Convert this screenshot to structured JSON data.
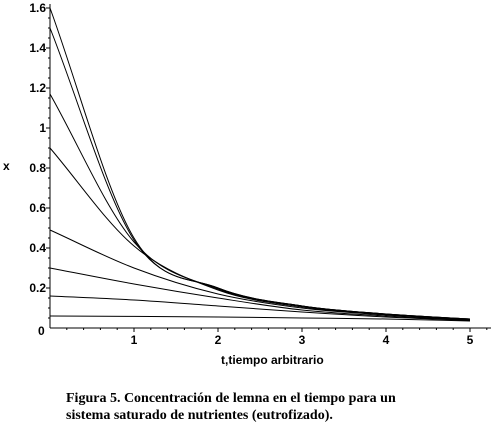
{
  "chart_data": {
    "type": "line",
    "xlabel": "t,tiempo arbitrario",
    "ylabel": "x",
    "xlim": [
      0,
      5.25
    ],
    "ylim": [
      0,
      1.62
    ],
    "x_ticks": [
      1,
      2,
      3,
      4,
      5
    ],
    "y_ticks": [
      0.2,
      0.4,
      0.6,
      0.8,
      1,
      1.2,
      1.4,
      1.6
    ],
    "origin_label": "0",
    "grid": false,
    "legend": "none",
    "series": [
      {
        "x": [
          0,
          1,
          2,
          3,
          4,
          5
        ],
        "values": [
          1.6,
          0.45,
          0.2,
          0.11,
          0.07,
          0.045
        ]
      },
      {
        "x": [
          0,
          1,
          2,
          3,
          4,
          5
        ],
        "values": [
          1.5,
          0.44,
          0.2,
          0.11,
          0.07,
          0.045
        ]
      },
      {
        "x": [
          0,
          1,
          2,
          3,
          4,
          5
        ],
        "values": [
          1.17,
          0.43,
          0.195,
          0.11,
          0.07,
          0.045
        ]
      },
      {
        "x": [
          0,
          1,
          2,
          3,
          4,
          5
        ],
        "values": [
          0.9,
          0.41,
          0.19,
          0.105,
          0.068,
          0.043
        ]
      },
      {
        "x": [
          0,
          1,
          2,
          3,
          4,
          5
        ],
        "values": [
          0.49,
          0.3,
          0.17,
          0.1,
          0.065,
          0.042
        ]
      },
      {
        "x": [
          0,
          1,
          2,
          3,
          4,
          5
        ],
        "values": [
          0.3,
          0.22,
          0.15,
          0.09,
          0.06,
          0.04
        ]
      },
      {
        "x": [
          0,
          1,
          2,
          3,
          4,
          5
        ],
        "values": [
          0.16,
          0.14,
          0.11,
          0.08,
          0.055,
          0.038
        ]
      },
      {
        "x": [
          0,
          1,
          2,
          3,
          4,
          5
        ],
        "values": [
          0.06,
          0.058,
          0.055,
          0.05,
          0.045,
          0.035
        ]
      }
    ]
  },
  "caption": {
    "line1": "Figura 5. Concentración de lemna en el tiempo para un",
    "line2": "sistema saturado de nutrientes (eutrofizado)."
  }
}
